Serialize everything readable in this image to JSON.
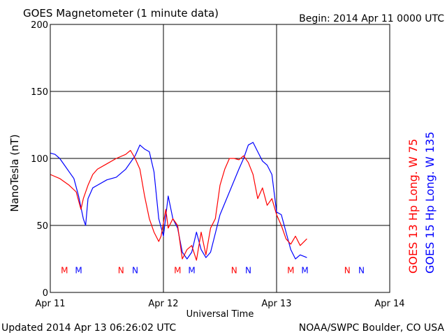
{
  "chart_data": {
    "type": "line",
    "title": "GOES Magnetometer (1 minute data)",
    "begin_label": "Begin:  2014 Apr 11 0000 UTC",
    "xlabel": "Universal Time",
    "ylabel": "NanoTesla (nT)",
    "ylim": [
      0,
      200
    ],
    "yticks": [
      0,
      50,
      100,
      150,
      200
    ],
    "xlim": [
      "2014-04-11 00:00",
      "2014-04-14 00:00"
    ],
    "xticks": [
      {
        "t": "2014-04-11 00:00",
        "label": "Apr 11"
      },
      {
        "t": "2014-04-12 00:00",
        "label": "Apr 12"
      },
      {
        "t": "2014-04-13 00:00",
        "label": "Apr 13"
      },
      {
        "t": "2014-04-14 00:00",
        "label": "Apr 14"
      }
    ],
    "grid": true,
    "legend_position": "right, rotated vertically",
    "series": [
      {
        "name": "GOES 13 Hp  Long. W 75",
        "color": "#ff0000",
        "x": [
          "2014-04-11 00:00",
          "2014-04-11 02:00",
          "2014-04-11 04:00",
          "2014-04-11 05:30",
          "2014-04-11 06:30",
          "2014-04-11 07:00",
          "2014-04-11 08:00",
          "2014-04-11 09:00",
          "2014-04-11 10:00",
          "2014-04-11 12:00",
          "2014-04-11 14:00",
          "2014-04-11 16:00",
          "2014-04-11 17:00",
          "2014-04-11 18:00",
          "2014-04-11 19:00",
          "2014-04-11 20:00",
          "2014-04-11 21:00",
          "2014-04-11 22:00",
          "2014-04-11 23:00",
          "2014-04-11 23:30",
          "2014-04-12 00:30",
          "2014-04-12 01:00",
          "2014-04-12 02:00",
          "2014-04-12 03:00",
          "2014-04-12 04:00",
          "2014-04-12 05:00",
          "2014-04-12 06:00",
          "2014-04-12 07:00",
          "2014-04-12 08:00",
          "2014-04-12 09:00",
          "2014-04-12 10:00",
          "2014-04-12 11:00",
          "2014-04-12 12:00",
          "2014-04-12 13:00",
          "2014-04-12 14:00",
          "2014-04-12 15:00",
          "2014-04-12 16:00",
          "2014-04-12 17:00",
          "2014-04-12 18:00",
          "2014-04-12 19:00",
          "2014-04-12 20:00",
          "2014-04-12 21:00",
          "2014-04-12 22:00",
          "2014-04-12 23:00",
          "2014-04-13 00:00",
          "2014-04-13 01:00",
          "2014-04-13 02:00",
          "2014-04-13 03:00",
          "2014-04-13 04:00",
          "2014-04-13 05:00",
          "2014-04-13 06:26"
        ],
        "values": [
          88,
          85,
          80,
          75,
          62,
          70,
          80,
          88,
          92,
          96,
          100,
          103,
          106,
          100,
          92,
          72,
          55,
          45,
          38,
          42,
          62,
          48,
          55,
          50,
          25,
          32,
          35,
          24,
          45,
          28,
          48,
          55,
          80,
          92,
          100,
          100,
          99,
          102,
          97,
          88,
          70,
          78,
          65,
          70,
          58,
          50,
          40,
          36,
          42,
          35,
          40
        ]
      },
      {
        "name": "GOES 15 Hp  Long. W 135",
        "color": "#0000ff",
        "x": [
          "2014-04-11 00:00",
          "2014-04-11 01:00",
          "2014-04-11 02:00",
          "2014-04-11 03:00",
          "2014-04-11 04:00",
          "2014-04-11 05:00",
          "2014-04-11 06:00",
          "2014-04-11 07:00",
          "2014-04-11 07:30",
          "2014-04-11 08:00",
          "2014-04-11 09:00",
          "2014-04-11 10:00",
          "2014-04-11 12:00",
          "2014-04-11 14:00",
          "2014-04-11 16:00",
          "2014-04-11 18:00",
          "2014-04-11 19:00",
          "2014-04-11 20:00",
          "2014-04-11 21:00",
          "2014-04-11 22:00",
          "2014-04-11 23:00",
          "2014-04-12 00:00",
          "2014-04-12 01:00",
          "2014-04-12 02:00",
          "2014-04-12 03:00",
          "2014-04-12 04:00",
          "2014-04-12 05:00",
          "2014-04-12 06:00",
          "2014-04-12 07:00",
          "2014-04-12 08:00",
          "2014-04-12 09:00",
          "2014-04-12 10:00",
          "2014-04-12 12:00",
          "2014-04-12 14:00",
          "2014-04-12 16:00",
          "2014-04-12 17:00",
          "2014-04-12 18:00",
          "2014-04-12 19:00",
          "2014-04-12 20:00",
          "2014-04-12 21:00",
          "2014-04-12 22:00",
          "2014-04-12 23:00",
          "2014-04-13 00:00",
          "2014-04-13 01:00",
          "2014-04-13 02:00",
          "2014-04-13 03:00",
          "2014-04-13 04:00",
          "2014-04-13 05:00",
          "2014-04-13 06:26"
        ],
        "values": [
          104,
          103,
          100,
          95,
          90,
          85,
          72,
          55,
          50,
          70,
          78,
          80,
          84,
          86,
          92,
          102,
          110,
          107,
          105,
          90,
          55,
          42,
          72,
          55,
          48,
          30,
          25,
          30,
          45,
          32,
          26,
          30,
          58,
          75,
          92,
          100,
          110,
          112,
          105,
          98,
          95,
          88,
          60,
          58,
          45,
          32,
          25,
          28,
          26
        ]
      }
    ],
    "markers": {
      "y": 17,
      "items": [
        {
          "t": "2014-04-11 03:00",
          "label": "M",
          "color": "#ff0000"
        },
        {
          "t": "2014-04-11 06:00",
          "label": "M",
          "color": "#0000ff"
        },
        {
          "t": "2014-04-11 15:00",
          "label": "N",
          "color": "#ff0000"
        },
        {
          "t": "2014-04-11 18:00",
          "label": "N",
          "color": "#0000ff"
        },
        {
          "t": "2014-04-12 03:00",
          "label": "M",
          "color": "#ff0000"
        },
        {
          "t": "2014-04-12 06:00",
          "label": "M",
          "color": "#0000ff"
        },
        {
          "t": "2014-04-12 15:00",
          "label": "N",
          "color": "#ff0000"
        },
        {
          "t": "2014-04-12 18:00",
          "label": "N",
          "color": "#0000ff"
        },
        {
          "t": "2014-04-13 03:00",
          "label": "M",
          "color": "#ff0000"
        },
        {
          "t": "2014-04-13 06:00",
          "label": "M",
          "color": "#0000ff"
        },
        {
          "t": "2014-04-13 15:00",
          "label": "N",
          "color": "#ff0000"
        },
        {
          "t": "2014-04-13 18:00",
          "label": "N",
          "color": "#0000ff"
        }
      ]
    }
  },
  "footer": {
    "updated": "Updated 2014 Apr 13 06:26:02 UTC",
    "source": "NOAA/SWPC Boulder, CO USA"
  }
}
